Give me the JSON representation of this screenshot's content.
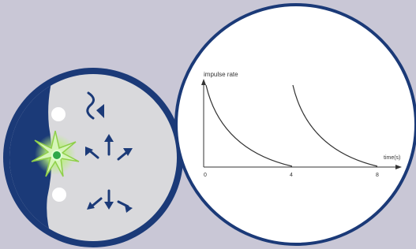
{
  "graph": {
    "y_label": "impulse rate",
    "x_label": "time(s)",
    "xticks": [
      0,
      4,
      8
    ]
  }
}
